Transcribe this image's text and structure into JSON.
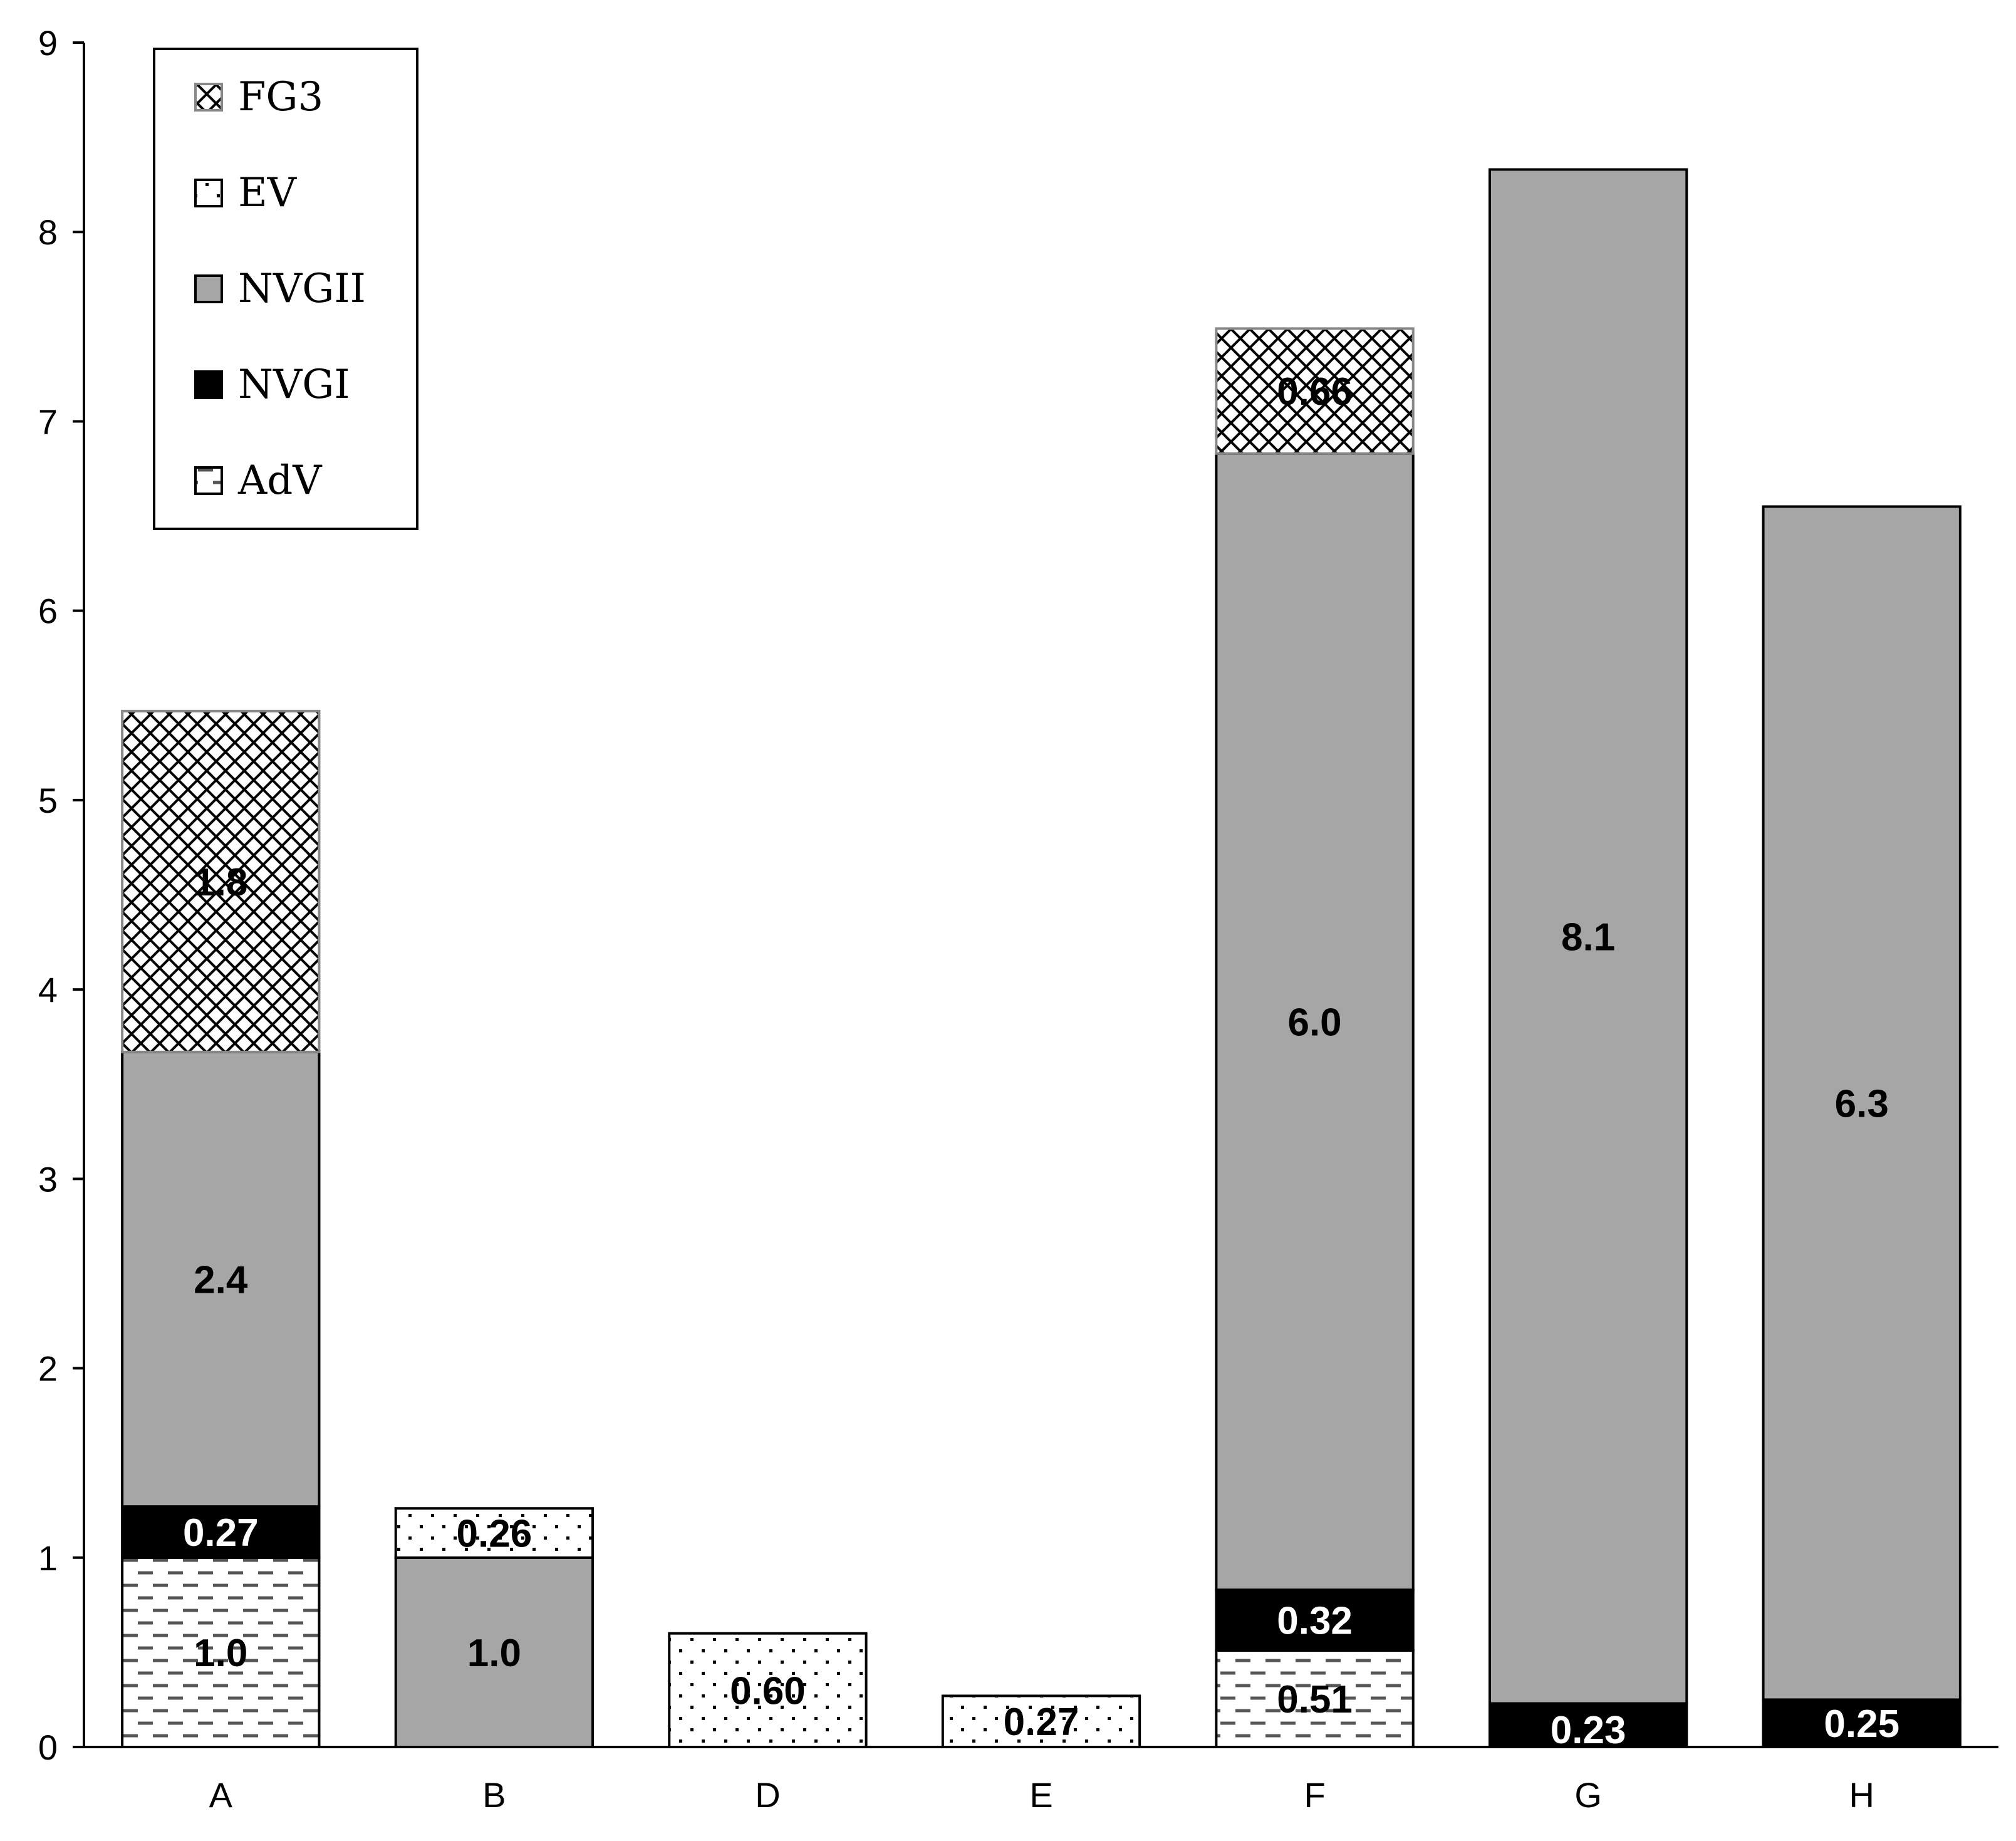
{
  "chart_data": {
    "type": "bar",
    "stacked": true,
    "categories": [
      "A",
      "B",
      "D",
      "E",
      "F",
      "G",
      "H"
    ],
    "ylim": [
      0,
      9
    ],
    "yticks": [
      0,
      1,
      2,
      3,
      4,
      5,
      6,
      7,
      8,
      9
    ],
    "grid": false,
    "legend_placement": "top-left",
    "series": [
      {
        "name": "AdV",
        "values": [
          1.0,
          0,
          0,
          0,
          0.51,
          0,
          0
        ],
        "labels": [
          "1.0",
          "",
          "",
          "",
          "0.51",
          "",
          ""
        ]
      },
      {
        "name": "NVGI",
        "values": [
          0.27,
          0,
          0,
          0,
          0.32,
          0.23,
          0.25
        ],
        "labels": [
          "0.27",
          "",
          "",
          "",
          "0.32",
          "0.23",
          "0.25"
        ]
      },
      {
        "name": "NVGII",
        "values": [
          2.4,
          1.0,
          0,
          0,
          6.0,
          8.1,
          6.3
        ],
        "labels": [
          "2.4",
          "1.0",
          "",
          "",
          "6.0",
          "8.1",
          "6.3"
        ]
      },
      {
        "name": "EV",
        "values": [
          0,
          0.26,
          0.6,
          0.27,
          0,
          0,
          0
        ],
        "labels": [
          "",
          "0.26",
          "0.60",
          "0.27",
          "",
          "",
          ""
        ]
      },
      {
        "name": "FG3",
        "values": [
          1.8,
          0,
          0,
          0,
          0.66,
          0,
          0
        ],
        "labels": [
          "1.8",
          "",
          "",
          "",
          "0.66",
          "",
          ""
        ]
      }
    ],
    "legend_order": [
      "FG3",
      "EV",
      "NVGII",
      "NVGI",
      "AdV"
    ],
    "colors": {
      "AdV": "#ffffff",
      "NVGI": "#000000",
      "NVGII": "#a6a6a6",
      "EV": "#ffffff",
      "FG3": "#ffffff"
    }
  }
}
